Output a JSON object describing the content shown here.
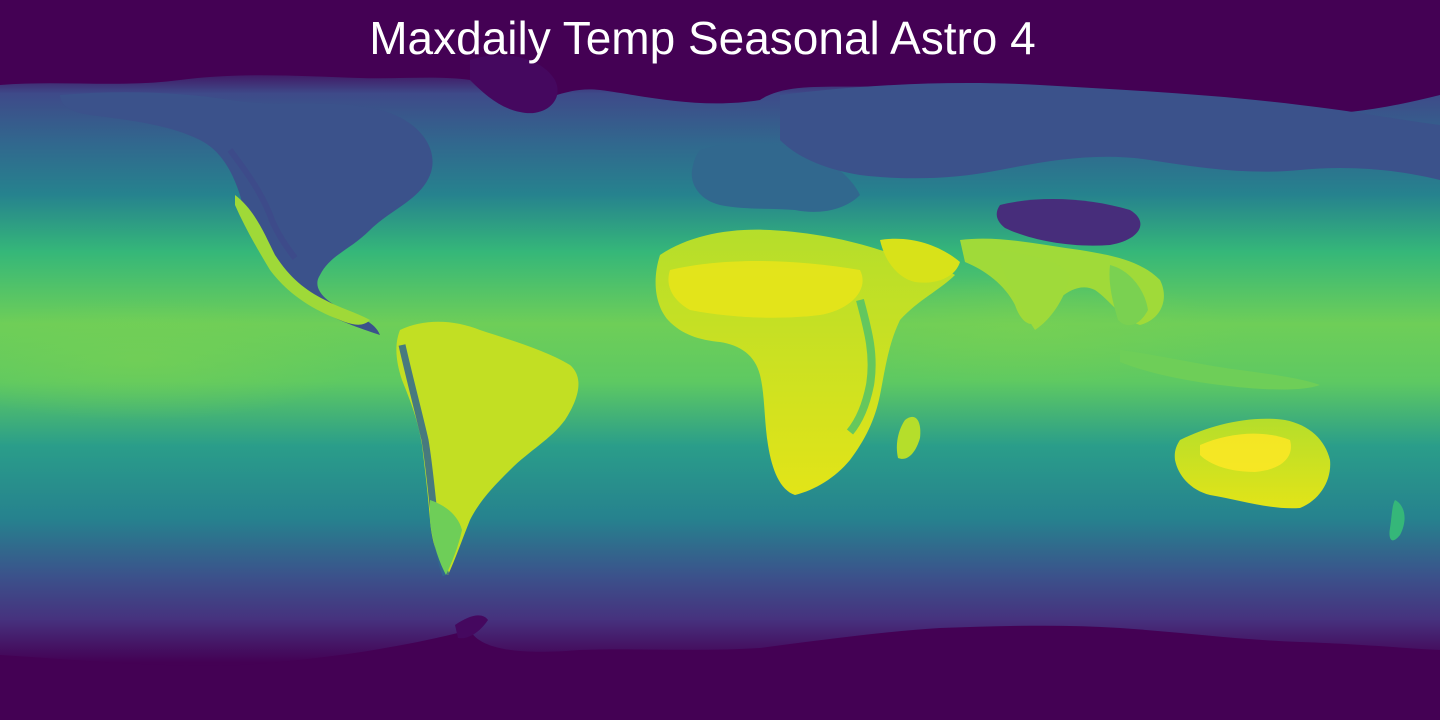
{
  "map": {
    "title": "Maxdaily Temp Seasonal Astro 4",
    "projection": "equirectangular",
    "colormap": "viridis",
    "colormap_stops": [
      "#440154",
      "#46327e",
      "#365c8d",
      "#277f8e",
      "#1fa187",
      "#4ac16d",
      "#a0da39",
      "#fde725"
    ]
  }
}
